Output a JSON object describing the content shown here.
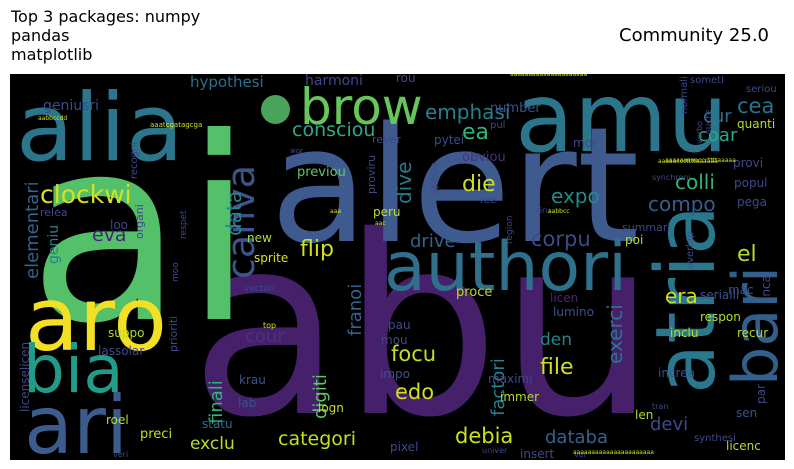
{
  "header": {
    "title_lines": "Top 3 packages: numpy\npandas\nmatplotlib",
    "subtitle": "Community 25.0"
  },
  "wordcloud": {
    "background_color": "#000000",
    "words": [
      "abu",
      "ai",
      "alert",
      "alia",
      "amu",
      "aro",
      "authori",
      "atria",
      "bari",
      "brow",
      "bia",
      "ari",
      "canva",
      "consciou",
      "clockwi",
      "data",
      "dive",
      "die",
      "ea",
      "emphasi",
      "cur",
      "coar",
      "cea",
      "colli",
      "expo",
      "compo",
      "corpu",
      "drive",
      "eva",
      "elementari",
      "geniu",
      "flip",
      "el",
      "era",
      "exerci",
      "den",
      "file",
      "focu",
      "edo",
      "factori",
      "digiti",
      "franoi",
      "cour",
      "finali",
      "categori",
      "debia",
      "databa",
      "devi",
      "exclu",
      "hypothesi",
      "harmoni",
      "number",
      "previou",
      "proviru",
      "pytei",
      "peru",
      "obviou",
      "mor",
      "new",
      "sprite",
      "lassolar",
      "suppo",
      "preci",
      "statu",
      "roel",
      "produc",
      "lab",
      "krau",
      "logn",
      "impo",
      "mou",
      "pau",
      "lumino",
      "licen",
      "proce",
      "poi",
      "immer",
      "maximi",
      "insert",
      "pixel",
      "len",
      "increa",
      "inclu",
      "mac",
      "respon",
      "recur",
      "sen",
      "licenc",
      "synthesi",
      "provi",
      "popul",
      "pega",
      "quanti",
      "normali",
      "serialli",
      "overlap",
      "inca",
      "par",
      "geniusri",
      "recogni",
      "rever",
      "specia",
      "region",
      "summari",
      "loo",
      "relea",
      "organi",
      "prioriti",
      "vectori",
      "seriou",
      "someti",
      "licenselicen",
      "rou",
      "pul",
      "wor",
      "viru",
      "top",
      "tran",
      "univer",
      "veri",
      "ver",
      "sucre",
      "verbo",
      "ree",
      "aac",
      "aabbcc",
      "aaa",
      "aabbccdd",
      "aaatcgatagcga",
      "aaaaaaaaaaaaaaaaaaaaa",
      "aaaaaaaaaaaaaaaaaaaaaa",
      "aaaaaaaaacccttttaaaaa",
      "moo",
      "respet",
      "synchroni",
      "aaaaacccttttaaaaaa"
    ]
  }
}
